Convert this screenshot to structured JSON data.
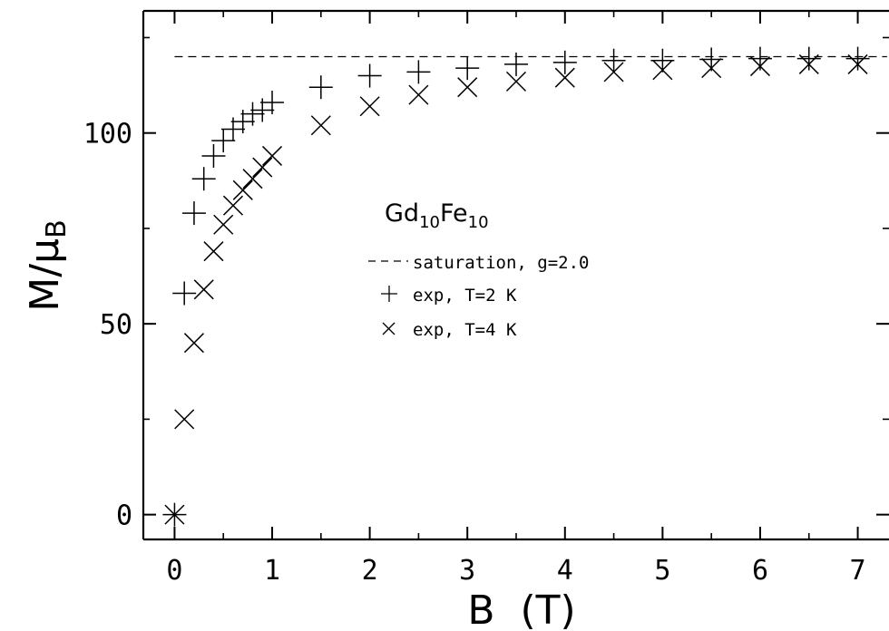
{
  "chart_data": {
    "type": "scatter",
    "xlabel": "B  (T)",
    "ylabel": {
      "main": "M/μ",
      "sub": "B"
    },
    "xlim": [
      -0.32,
      7.32
    ],
    "ylim": [
      -6.5,
      132
    ],
    "xticks": [
      0,
      1,
      2,
      3,
      4,
      5,
      6,
      7
    ],
    "yticks": [
      0,
      50,
      100
    ],
    "yticks_minor": [
      25,
      75,
      125
    ],
    "compound": {
      "base1": "Gd",
      "sub1": "10",
      "base2": "Fe",
      "sub2": "10"
    },
    "grid": false,
    "legend_position": "center",
    "series": [
      {
        "name": "saturation, g=2.0",
        "marker": "dashed-line",
        "x": [
          0,
          7.3
        ],
        "values": [
          120,
          120
        ]
      },
      {
        "name": "exp, T=2 K",
        "marker": "plus",
        "x": [
          0,
          0.1,
          0.2,
          0.3,
          0.4,
          0.5,
          0.6,
          0.7,
          0.8,
          0.9,
          1.0,
          1.5,
          2.0,
          2.5,
          3.0,
          3.5,
          4.0,
          4.5,
          5.0,
          5.5,
          6.0,
          6.5,
          7.0
        ],
        "values": [
          0,
          58,
          79,
          88,
          94,
          98,
          101,
          103,
          105,
          106,
          108,
          112,
          115,
          116,
          117,
          118,
          118.5,
          119,
          119,
          119.3,
          119.5,
          119.5,
          119.5
        ]
      },
      {
        "name": "exp, T=4 K",
        "marker": "cross",
        "x": [
          0,
          0.1,
          0.2,
          0.3,
          0.4,
          0.5,
          0.6,
          0.7,
          0.8,
          0.9,
          1.0,
          1.5,
          2.0,
          2.5,
          3.0,
          3.5,
          4.0,
          4.5,
          5.0,
          5.5,
          6.0,
          6.5,
          7.0
        ],
        "values": [
          0,
          25,
          45,
          59,
          69,
          76,
          81,
          85,
          88,
          91,
          94,
          102,
          107,
          110,
          112,
          113.5,
          114.5,
          116,
          116.5,
          117,
          117.5,
          118,
          118
        ]
      }
    ]
  }
}
